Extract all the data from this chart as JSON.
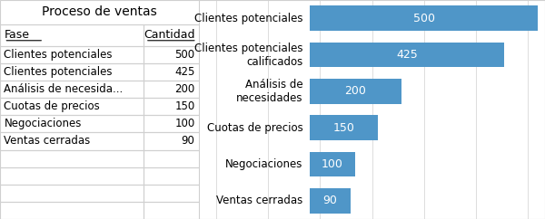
{
  "title": "Proceso de ventas",
  "col_headers": [
    "Fase",
    "Cantidad"
  ],
  "phases": [
    "Clientes potenciales",
    "Clientes potenciales",
    "Análisis de necesidades",
    "Cuotas de precios",
    "Negociaciones",
    "Ventas cerradas"
  ],
  "phases_table": [
    "Clientes potenciales",
    "Clientes potenciales",
    "Análisis de necesida...",
    "Cuotas de precios",
    "Negociaciones",
    "Ventas cerradas"
  ],
  "chart_labels": [
    "Clientes potenciales",
    "Clientes potenciales\ncalificados",
    "Análisis de\nnecesidades",
    "Cuotas de precios",
    "Negociaciones",
    "Ventas cerradas"
  ],
  "values": [
    500,
    425,
    200,
    150,
    100,
    90
  ],
  "bar_color": "#4f96c8",
  "bar_text_color": "#ffffff",
  "background_color": "#ffffff",
  "grid_color": "#d0d0d0",
  "table_text_color": "#000000",
  "title_fontsize": 10,
  "label_fontsize": 8.5,
  "value_fontsize": 9,
  "max_value": 500
}
